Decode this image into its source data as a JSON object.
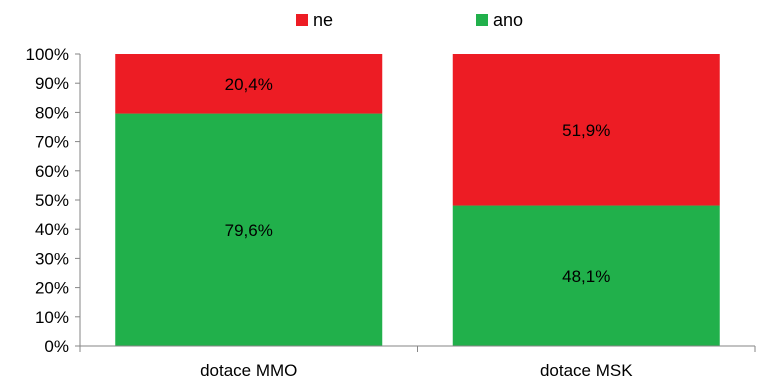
{
  "chart_data": {
    "type": "bar",
    "stacked": true,
    "percent": true,
    "categories": [
      "dotace MMO",
      "dotace MSK"
    ],
    "series": [
      {
        "name": "ano",
        "values": [
          79.6,
          48.1
        ],
        "labels": [
          "79,6%",
          "48,1%"
        ],
        "color": "#21b04b"
      },
      {
        "name": "ne",
        "values": [
          20.4,
          51.9
        ],
        "labels": [
          "20,4%",
          "51,9%"
        ],
        "color": "#ed1c24"
      }
    ],
    "legend_order": [
      "ne",
      "ano"
    ],
    "legend_position": "top",
    "ylim": [
      0,
      100
    ],
    "yticks": [
      0,
      10,
      20,
      30,
      40,
      50,
      60,
      70,
      80,
      90,
      100
    ],
    "ytick_labels": [
      "0%",
      "10%",
      "20%",
      "30%",
      "40%",
      "50%",
      "60%",
      "70%",
      "80%",
      "90%",
      "100%"
    ],
    "grid": false
  }
}
